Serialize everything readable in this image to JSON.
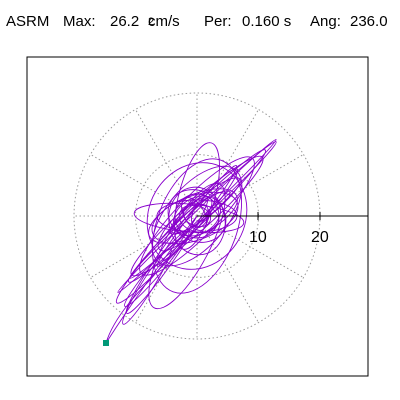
{
  "header": {
    "name": "ASRM",
    "max_label": "Max:",
    "max_value": "26.2",
    "max_unit": "cm/s",
    "max_unit_exp": "2",
    "per_label": "Per:",
    "per_value": "0.160 s",
    "ang_label": "Ang:",
    "ang_value": "236.0"
  },
  "chart_data": {
    "type": "polar-orbit",
    "radial_ticks": [
      10,
      20
    ],
    "rings": [
      10,
      20
    ],
    "spokes_deg": [
      0,
      30,
      60,
      90,
      120,
      150,
      180,
      210,
      240,
      270,
      300,
      330
    ],
    "grid": "dotted",
    "axis": "positive-x",
    "colors": {
      "trace": "#8800cc",
      "endpoint": "#009977",
      "grid": "#999999",
      "frame": "#000000"
    }
  }
}
